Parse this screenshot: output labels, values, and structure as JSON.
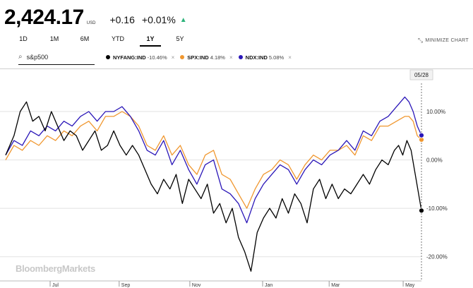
{
  "header": {
    "price": "2,424.17",
    "currency": "USD",
    "change": "+0.16",
    "change_pct": "+0.01%",
    "up_arrow": "▲"
  },
  "ranges": [
    {
      "label": "1D"
    },
    {
      "label": "1M"
    },
    {
      "label": "6M"
    },
    {
      "label": "YTD"
    },
    {
      "label": "1Y",
      "active": true
    },
    {
      "label": "5Y"
    }
  ],
  "minimize": {
    "label": "MINIMIZE CHART",
    "icon": "collapse-icon"
  },
  "search": {
    "value": "s&p500",
    "icon": "search-icon"
  },
  "legend": [
    {
      "name": "NYFANG:IND",
      "pct": "-10.46%",
      "color": "#000000"
    },
    {
      "name": "SPX:IND",
      "pct": "4.18%",
      "color": "#f0972f"
    },
    {
      "name": "NDX:IND",
      "pct": "5.08%",
      "color": "#2a16b8"
    }
  ],
  "watermark": "BloombergMarkets",
  "chart_data": {
    "type": "line",
    "title": "",
    "xlabel": "",
    "ylabel": "",
    "x_range": [
      0,
      1
    ],
    "ylim": [
      -25,
      17
    ],
    "y_ticks": [
      10,
      0,
      -10,
      -20
    ],
    "y_tick_labels": [
      "10.00%",
      "0.00%",
      "-10.00%",
      "-20.00%"
    ],
    "x_ticks": [
      {
        "label": "Jul",
        "pos": 0.107
      },
      {
        "label": "Sep",
        "pos": 0.273
      },
      {
        "label": "Nov",
        "pos": 0.443
      },
      {
        "label": "Jan",
        "pos": 0.618
      },
      {
        "label": "Mar",
        "pos": 0.778
      },
      {
        "label": "May",
        "pos": 0.956
      }
    ],
    "crosshair_label": "05/28",
    "series": [
      {
        "name": "NYFANG:IND",
        "color": "#000000",
        "end_value": -10.46,
        "x": [
          0,
          0.02,
          0.035,
          0.05,
          0.065,
          0.08,
          0.095,
          0.11,
          0.125,
          0.14,
          0.155,
          0.17,
          0.185,
          0.2,
          0.215,
          0.23,
          0.245,
          0.26,
          0.275,
          0.29,
          0.305,
          0.32,
          0.335,
          0.35,
          0.365,
          0.38,
          0.395,
          0.41,
          0.425,
          0.44,
          0.455,
          0.47,
          0.485,
          0.5,
          0.515,
          0.53,
          0.545,
          0.56,
          0.575,
          0.59,
          0.605,
          0.62,
          0.635,
          0.65,
          0.665,
          0.68,
          0.695,
          0.71,
          0.725,
          0.74,
          0.755,
          0.77,
          0.785,
          0.8,
          0.815,
          0.83,
          0.845,
          0.86,
          0.875,
          0.89,
          0.905,
          0.92,
          0.935,
          0.945,
          0.955,
          0.965,
          0.975,
          0.985,
          1.0
        ],
        "values": [
          1,
          5,
          10,
          12,
          8,
          9,
          6,
          10,
          7,
          4,
          6,
          5,
          2,
          4,
          6,
          2,
          3,
          6,
          3,
          1,
          3,
          1,
          -2,
          -5,
          -7,
          -4,
          -6,
          -3,
          -9,
          -4,
          -6,
          -8,
          -5,
          -11,
          -9,
          -13,
          -10,
          -16,
          -19,
          -23,
          -15,
          -12,
          -10,
          -12,
          -8,
          -11,
          -7,
          -9,
          -13,
          -6,
          -4,
          -8,
          -5,
          -8,
          -6,
          -7,
          -5,
          -3,
          -5,
          -2,
          0,
          -1,
          2,
          3,
          1,
          4,
          2,
          -3,
          -10.46
        ]
      },
      {
        "name": "SPX:IND",
        "color": "#f0972f",
        "end_value": 4.18,
        "x": [
          0,
          0.02,
          0.04,
          0.06,
          0.08,
          0.1,
          0.12,
          0.14,
          0.16,
          0.18,
          0.2,
          0.22,
          0.24,
          0.26,
          0.28,
          0.3,
          0.32,
          0.34,
          0.36,
          0.38,
          0.4,
          0.42,
          0.44,
          0.46,
          0.48,
          0.5,
          0.52,
          0.54,
          0.56,
          0.58,
          0.6,
          0.62,
          0.64,
          0.66,
          0.68,
          0.7,
          0.72,
          0.74,
          0.76,
          0.78,
          0.8,
          0.82,
          0.84,
          0.86,
          0.88,
          0.9,
          0.92,
          0.94,
          0.96,
          0.97,
          0.98,
          0.99,
          1.0
        ],
        "values": [
          0,
          3,
          2,
          4,
          3,
          5,
          4,
          6,
          5,
          7,
          8,
          6,
          9,
          9,
          10,
          9,
          7,
          3,
          2,
          5,
          1,
          3,
          -1,
          -3,
          1,
          2,
          -3,
          -4,
          -7,
          -10,
          -6,
          -3,
          -2,
          0,
          -1,
          -4,
          -1,
          1,
          0,
          2,
          2,
          3,
          1,
          5,
          4,
          7,
          7,
          8,
          9,
          9,
          8,
          5,
          4.18
        ]
      },
      {
        "name": "NDX:IND",
        "color": "#2a16b8",
        "end_value": 5.08,
        "x": [
          0,
          0.02,
          0.04,
          0.06,
          0.08,
          0.1,
          0.12,
          0.14,
          0.16,
          0.18,
          0.2,
          0.22,
          0.24,
          0.26,
          0.28,
          0.3,
          0.32,
          0.34,
          0.36,
          0.38,
          0.4,
          0.42,
          0.44,
          0.46,
          0.48,
          0.5,
          0.52,
          0.54,
          0.56,
          0.58,
          0.6,
          0.62,
          0.64,
          0.66,
          0.68,
          0.7,
          0.72,
          0.74,
          0.76,
          0.78,
          0.8,
          0.82,
          0.84,
          0.86,
          0.88,
          0.9,
          0.92,
          0.94,
          0.96,
          0.97,
          0.98,
          0.99,
          1.0
        ],
        "values": [
          1,
          4,
          3,
          6,
          5,
          7,
          6,
          8,
          7,
          9,
          10,
          8,
          10,
          10,
          11,
          9,
          6,
          2,
          1,
          4,
          -1,
          2,
          -2,
          -5,
          -1,
          0,
          -6,
          -7,
          -9,
          -13,
          -8,
          -5,
          -3,
          -1,
          -2,
          -5,
          -2,
          0,
          -1,
          1,
          2,
          4,
          2,
          6,
          5,
          8,
          9,
          11,
          13,
          12,
          10,
          7,
          5.08
        ]
      }
    ]
  }
}
